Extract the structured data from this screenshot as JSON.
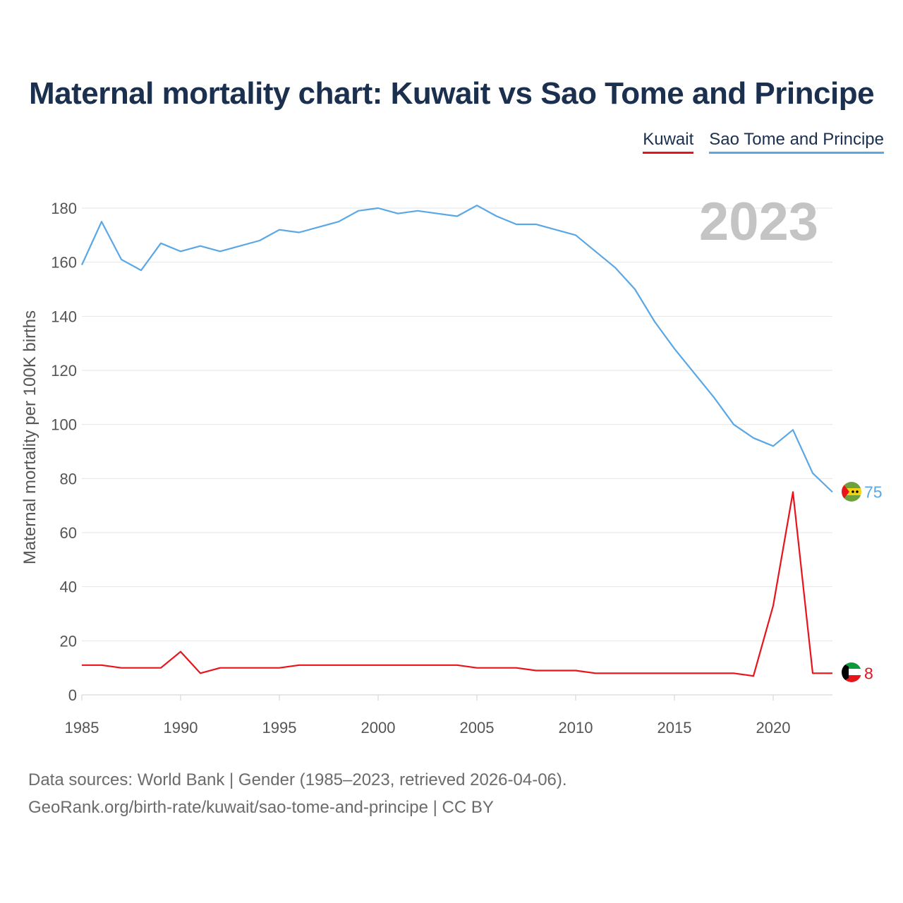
{
  "title": "Maternal mortality chart: Kuwait vs Sao Tome and Principe",
  "footer": {
    "line1": "Data sources: World Bank | Gender (1985–2023, retrieved 2026-04-06).",
    "line2": "GeoRank.org/birth-rate/kuwait/sao-tome-and-principe | CC BY"
  },
  "chart_data": {
    "type": "line",
    "title": "Maternal mortality chart: Kuwait vs Sao Tome and Principe",
    "xlabel": "",
    "ylabel": "Maternal mortality per 100K births",
    "year_label": "2023",
    "xlim": [
      1985,
      2023
    ],
    "ylim": [
      0,
      180
    ],
    "xticks": [
      1985,
      1990,
      1995,
      2000,
      2005,
      2010,
      2015,
      2020
    ],
    "yticks": [
      0,
      20,
      40,
      60,
      80,
      100,
      120,
      140,
      160,
      180
    ],
    "grid": true,
    "legend": "top-right",
    "x": [
      1985,
      1986,
      1987,
      1988,
      1989,
      1990,
      1991,
      1992,
      1993,
      1994,
      1995,
      1996,
      1997,
      1998,
      1999,
      2000,
      2001,
      2002,
      2003,
      2004,
      2005,
      2006,
      2007,
      2008,
      2009,
      2010,
      2011,
      2012,
      2013,
      2014,
      2015,
      2016,
      2017,
      2018,
      2019,
      2020,
      2021,
      2022,
      2023
    ],
    "series": [
      {
        "name": "Kuwait",
        "color": "#e8141b",
        "end_label": "8",
        "values": [
          11,
          11,
          10,
          10,
          10,
          16,
          8,
          10,
          10,
          10,
          10,
          11,
          11,
          11,
          11,
          11,
          11,
          11,
          11,
          11,
          10,
          10,
          10,
          9,
          9,
          9,
          8,
          8,
          8,
          8,
          8,
          8,
          8,
          8,
          7,
          33,
          75,
          8,
          8
        ]
      },
      {
        "name": "Sao Tome and Principe",
        "color": "#5aa7e6",
        "end_label": "75",
        "values": [
          159,
          175,
          161,
          157,
          167,
          164,
          166,
          164,
          166,
          168,
          172,
          171,
          173,
          175,
          179,
          180,
          178,
          179,
          178,
          177,
          181,
          177,
          174,
          174,
          172,
          170,
          164,
          158,
          150,
          138,
          128,
          119,
          110,
          100,
          95,
          92,
          98,
          82,
          75
        ]
      }
    ]
  }
}
